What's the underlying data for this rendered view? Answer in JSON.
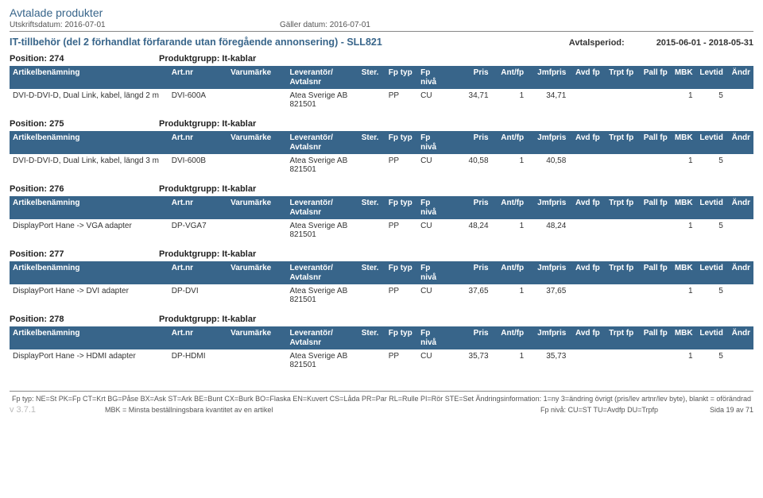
{
  "doc": {
    "title": "Avtalade produkter",
    "print_label": "Utskriftsdatum: 2016-07-01",
    "valid_label": "Gäller datum: 2016-07-01",
    "heading": "IT-tillbehör (del 2 förhandlat förfarande utan föregående annonsering) - SLL821",
    "period_label": "Avtalsperiod:",
    "period_value": "2015-06-01 - 2018-05-31"
  },
  "columns": {
    "c0": "Artikelbenämning",
    "c1": "Art.nr",
    "c2": "Varumärke",
    "c3": "Leverantör/ Avtalsnr",
    "c4": "Ster.",
    "c5": "Fp typ",
    "c6": "Fp nivå",
    "c7": "Pris",
    "c8": "Ant/fp",
    "c9": "Jmfpris",
    "c10": "Avd fp",
    "c11": "Trpt fp",
    "c12": "Pall fp",
    "c13": "MBK",
    "c14": "Levtid",
    "c15": "Ändr"
  },
  "group_label_prefix": "Produktgrupp: ",
  "sections": [
    {
      "position": "Position: 274",
      "group": "It-kablar",
      "row": {
        "name": "DVI-D-DVI-D, Dual Link, kabel, längd 2 m",
        "artnr": "DVI-600A",
        "brand": "",
        "supplier": "Atea Sverige AB 821501",
        "ster": "",
        "fptyp": "PP",
        "fpniva": "CU",
        "pris": "34,71",
        "antfp": "1",
        "jmfpris": "34,71",
        "avdfp": "",
        "trptfp": "",
        "pallfp": "",
        "mbk": "1",
        "levtid": "5",
        "andr": ""
      }
    },
    {
      "position": "Position: 275",
      "group": "It-kablar",
      "row": {
        "name": "DVI-D-DVI-D, Dual Link, kabel, längd 3 m",
        "artnr": "DVI-600B",
        "brand": "",
        "supplier": "Atea Sverige AB 821501",
        "ster": "",
        "fptyp": "PP",
        "fpniva": "CU",
        "pris": "40,58",
        "antfp": "1",
        "jmfpris": "40,58",
        "avdfp": "",
        "trptfp": "",
        "pallfp": "",
        "mbk": "1",
        "levtid": "5",
        "andr": ""
      }
    },
    {
      "position": "Position: 276",
      "group": "It-kablar",
      "row": {
        "name": "DisplayPort Hane -> VGA adapter",
        "artnr": "DP-VGA7",
        "brand": "",
        "supplier": "Atea Sverige AB 821501",
        "ster": "",
        "fptyp": "PP",
        "fpniva": "CU",
        "pris": "48,24",
        "antfp": "1",
        "jmfpris": "48,24",
        "avdfp": "",
        "trptfp": "",
        "pallfp": "",
        "mbk": "1",
        "levtid": "5",
        "andr": ""
      }
    },
    {
      "position": "Position: 277",
      "group": "It-kablar",
      "row": {
        "name": "DisplayPort Hane -> DVI adapter",
        "artnr": "DP-DVI",
        "brand": "",
        "supplier": "Atea Sverige AB 821501",
        "ster": "",
        "fptyp": "PP",
        "fpniva": "CU",
        "pris": "37,65",
        "antfp": "1",
        "jmfpris": "37,65",
        "avdfp": "",
        "trptfp": "",
        "pallfp": "",
        "mbk": "1",
        "levtid": "5",
        "andr": ""
      }
    },
    {
      "position": "Position: 278",
      "group": "It-kablar",
      "row": {
        "name": "DisplayPort Hane -> HDMI adapter",
        "artnr": "DP-HDMI",
        "brand": "",
        "supplier": "Atea Sverige AB 821501",
        "ster": "",
        "fptyp": "PP",
        "fpniva": "CU",
        "pris": "35,73",
        "antfp": "1",
        "jmfpris": "35,73",
        "avdfp": "",
        "trptfp": "",
        "pallfp": "",
        "mbk": "1",
        "levtid": "5",
        "andr": ""
      }
    }
  ],
  "footer": {
    "legend": "Fp typ: NE=St PK=Fp CT=Krt BG=Påse BX=Ask ST=Ark BE=Bunt CX=Burk BO=Flaska EN=Kuvert CS=Låda PR=Par RL=Rulle PI=Rör STE=Set Ändringsinformation: 1=ny 3=ändring övrigt (pris/lev artnr/lev byte), blankt = oförändrad",
    "mbk": "MBK = Minsta beställningsbara kvantitet av en artikel",
    "niva": "Fp nivå: CU=ST TU=Avdfp DU=Trpfp",
    "version": "v 3.7.1",
    "pager": "Sida 19 av 71"
  },
  "colwidths": {
    "c0": "188px",
    "c1": "70px",
    "c2": "70px",
    "c3": "85px",
    "c4": "32px",
    "c5": "38px",
    "c6": "40px",
    "c7": "48px",
    "c8": "42px",
    "c9": "50px",
    "c10": "40px",
    "c11": "40px",
    "c12": "40px",
    "c13": "30px",
    "c14": "36px",
    "c15": "32px"
  },
  "colors": {
    "header_bg": "#38658a",
    "header_fg": "#ffffff",
    "title_color": "#38658a"
  }
}
